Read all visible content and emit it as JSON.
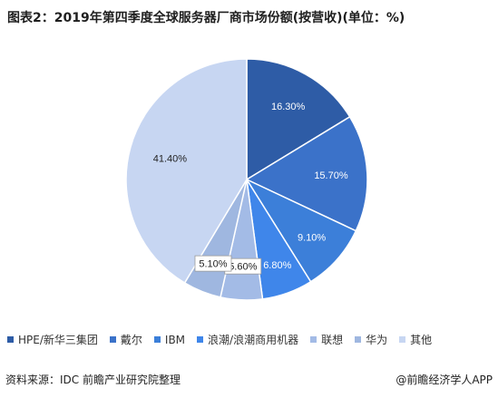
{
  "chart_data": {
    "type": "pie",
    "title": "图表2：2019年第四季度全球服务器厂商市场份额(按营收)(单位：%)",
    "categories": [
      "HPE/新华三集团",
      "戴尔",
      "IBM",
      "浪潮/浪潮商用机器",
      "联想",
      "华为",
      "其他"
    ],
    "values": [
      16.3,
      15.7,
      9.1,
      6.8,
      5.6,
      5.1,
      41.4
    ],
    "labels": [
      "16.30%",
      "15.70%",
      "9.10%",
      "6.80%",
      "5.60%",
      "5.10%",
      "41.40%"
    ],
    "colors": [
      "#2e5ca6",
      "#3b72c9",
      "#3c7fd9",
      "#3f86ea",
      "#a3bbe6",
      "#9fb7e0",
      "#c7d6f2"
    ],
    "label_colors": [
      "#ffffff",
      "#ffffff",
      "#ffffff",
      "#ffffff",
      "#222222",
      "#222222",
      "#222222"
    ],
    "label_boxed": [
      false,
      false,
      false,
      false,
      true,
      true,
      false
    ],
    "start_angle_deg": 0,
    "direction": "clockwise",
    "legend_position": "bottom"
  },
  "footer": {
    "source": "资料来源：IDC 前瞻产业研究院整理",
    "credit": "@前瞻经济学人APP"
  }
}
